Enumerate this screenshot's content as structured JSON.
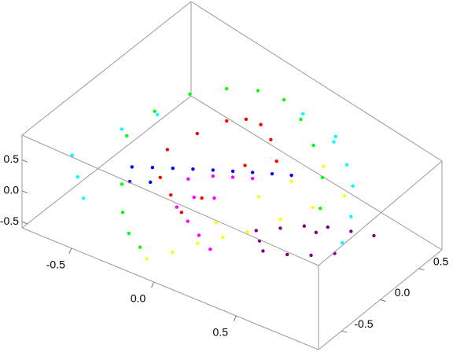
{
  "chart_data": {
    "type": "scatter3d",
    "xlim": [
      -0.8,
      1.0
    ],
    "ylim": [
      -0.8,
      0.8
    ],
    "zlim": [
      -0.6,
      0.9
    ],
    "xticks": [
      {
        "value": -0.5,
        "label": "-0.5"
      },
      {
        "value": 0,
        "label": "0.0"
      },
      {
        "value": 0.5,
        "label": "0.5"
      }
    ],
    "yticks": [
      {
        "value": -0.5,
        "label": "-0.5"
      },
      {
        "value": 0,
        "label": "0.0"
      },
      {
        "value": 0.5,
        "label": "0.5"
      }
    ],
    "zticks": [
      {
        "value": -0.5,
        "label": "-0.5"
      },
      {
        "value": 0,
        "label": "0.0"
      },
      {
        "value": 0.5,
        "label": "0.5"
      }
    ],
    "series": [
      {
        "color": "#00ff00",
        "x": [
          -0.6,
          -0.55,
          -0.45,
          -0.3,
          -0.15,
          0,
          0.15,
          0.3,
          0.45,
          0.55,
          -0.5,
          -0.4,
          -0.3,
          -0.2
        ],
        "y": [
          -0.1,
          0.1,
          0.3,
          0.45,
          0.55,
          0.6,
          0.55,
          0.45,
          0.3,
          0.1,
          -0.3,
          -0.45,
          -0.55,
          -0.6
        ],
        "z": [
          0.2,
          0.4,
          0.55,
          0.65,
          0.7,
          0.7,
          0.65,
          0.55,
          0.4,
          0.25,
          -0.2,
          -0.35,
          -0.45,
          -0.5
        ]
      },
      {
        "color": "#00ffff",
        "x": [
          -0.75,
          -0.65,
          -0.55,
          0.35,
          0.5,
          0.6,
          0.7,
          0.75,
          0.3,
          0.1,
          -0.6,
          -0.7
        ],
        "y": [
          -0.4,
          -0.5,
          -0.6,
          0.6,
          0.5,
          0.4,
          0.2,
          0,
          0.7,
          0.65,
          0.2,
          0
        ],
        "z": [
          0.1,
          0,
          -0.1,
          0.5,
          0.45,
          0.35,
          0.2,
          0.05,
          0.4,
          0.55,
          0.15,
          0.05
        ]
      },
      {
        "color": "#ffff00",
        "x": [
          0.1,
          0.2,
          0.3,
          0.4,
          0.5,
          0.6,
          0.2,
          0.3,
          0.4,
          0.1,
          0,
          -0.1
        ],
        "y": [
          -0.5,
          -0.4,
          -0.3,
          -0.1,
          0.1,
          0.3,
          0,
          0.2,
          0.4,
          -0.3,
          -0.6,
          -0.7
        ],
        "z": [
          -0.2,
          -0.1,
          0,
          0.1,
          0.2,
          0.3,
          0.1,
          0.25,
          0.4,
          -0.1,
          -0.35,
          -0.45
        ]
      },
      {
        "color": "#ff0000",
        "x": [
          -0.4,
          -0.3,
          -0.2,
          -0.1,
          0,
          0.1,
          0.2,
          -0.35,
          -0.25,
          -0.15,
          -0.05,
          0.05
        ],
        "y": [
          0,
          0.15,
          0.3,
          0.35,
          0.35,
          0.3,
          0.2,
          -0.15,
          -0.2,
          -0.25,
          -0.2,
          0.1
        ],
        "z": [
          0.1,
          0.3,
          0.45,
          0.55,
          0.6,
          0.55,
          0.45,
          -0.1,
          -0.2,
          -0.3,
          0,
          0.3
        ]
      },
      {
        "color": "#0000ff",
        "x": [
          -0.5,
          -0.4,
          -0.3,
          -0.2,
          -0.1,
          0,
          0.1,
          0.2,
          0.3,
          -0.45,
          -0.35
        ],
        "y": [
          -0.2,
          -0.15,
          -0.1,
          -0.05,
          0,
          0.05,
          0.1,
          0.15,
          0.2,
          -0.3,
          -0.25
        ],
        "z": [
          -0.05,
          0,
          0.05,
          0.1,
          0.15,
          0.2,
          0.25,
          0.3,
          0.35,
          -0.1,
          -0.05
        ]
      },
      {
        "color": "#ff00ff",
        "x": [
          -0.2,
          -0.1,
          0,
          0.1,
          -0.15,
          -0.05,
          0.05,
          0.15,
          0,
          -0.1
        ],
        "y": [
          -0.1,
          0,
          0.05,
          0.1,
          -0.3,
          -0.35,
          -0.4,
          -0.45,
          -0.15,
          -0.2
        ],
        "z": [
          0,
          0.05,
          0.1,
          0.15,
          -0.15,
          -0.2,
          -0.25,
          -0.3,
          0,
          -0.05
        ]
      },
      {
        "color": "#800080",
        "x": [
          0.3,
          0.4,
          0.5,
          0.6,
          0.7,
          0.8,
          0.4,
          0.5,
          0.6,
          0.7,
          0.35,
          0.55
        ],
        "y": [
          -0.2,
          -0.1,
          0,
          0.1,
          0.2,
          0.3,
          -0.3,
          -0.2,
          -0.1,
          0,
          -0.25,
          0.05
        ],
        "z": [
          -0.1,
          -0.05,
          0,
          0,
          -0.05,
          -0.1,
          -0.2,
          -0.25,
          -0.25,
          -0.2,
          -0.15,
          -0.1
        ]
      }
    ]
  }
}
